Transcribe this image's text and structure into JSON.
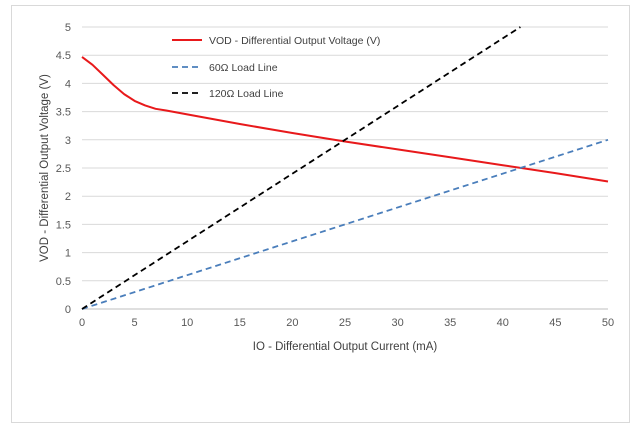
{
  "chart_data": {
    "type": "line",
    "title": "",
    "xlabel": "IO - Differential Output Current (mA)",
    "ylabel": "VOD - Differential Output Voltage (V)",
    "xlim": [
      0,
      50
    ],
    "ylim": [
      0,
      5
    ],
    "x_ticks": [
      0,
      5,
      10,
      15,
      20,
      25,
      30,
      35,
      40,
      45,
      50
    ],
    "y_ticks": [
      0,
      0.5,
      1,
      1.5,
      2,
      2.5,
      3,
      3.5,
      4,
      4.5,
      5
    ],
    "x_tick_labels": [
      "0",
      "5",
      "10",
      "15",
      "20",
      "25",
      "30",
      "35",
      "40",
      "45",
      "50"
    ],
    "y_tick_labels": [
      "0",
      "0.5",
      "1",
      "1.5",
      "2",
      "2.5",
      "3",
      "3.5",
      "4",
      "4.5",
      "5"
    ],
    "grid": "horizontal",
    "legend_position": "top-left",
    "series": [
      {
        "name": "VOD - Differential Output Voltage (V)",
        "color": "#e8191b",
        "style": "solid",
        "x": [
          0,
          1,
          2,
          3,
          4,
          5,
          6,
          7,
          8,
          10,
          15,
          20,
          25,
          30,
          35,
          40,
          45,
          50
        ],
        "y": [
          4.47,
          4.33,
          4.15,
          3.97,
          3.81,
          3.69,
          3.61,
          3.55,
          3.52,
          3.45,
          3.28,
          3.12,
          2.97,
          2.83,
          2.69,
          2.55,
          2.41,
          2.26
        ]
      },
      {
        "name": "60Ω Load Line",
        "color": "#4a7ebb",
        "style": "dashed",
        "x": [
          0,
          50
        ],
        "y": [
          0,
          3.0
        ]
      },
      {
        "name": "120Ω Load Line",
        "color": "#000000",
        "style": "dashed",
        "x": [
          0,
          41.67
        ],
        "y": [
          0,
          5.0
        ]
      }
    ]
  }
}
